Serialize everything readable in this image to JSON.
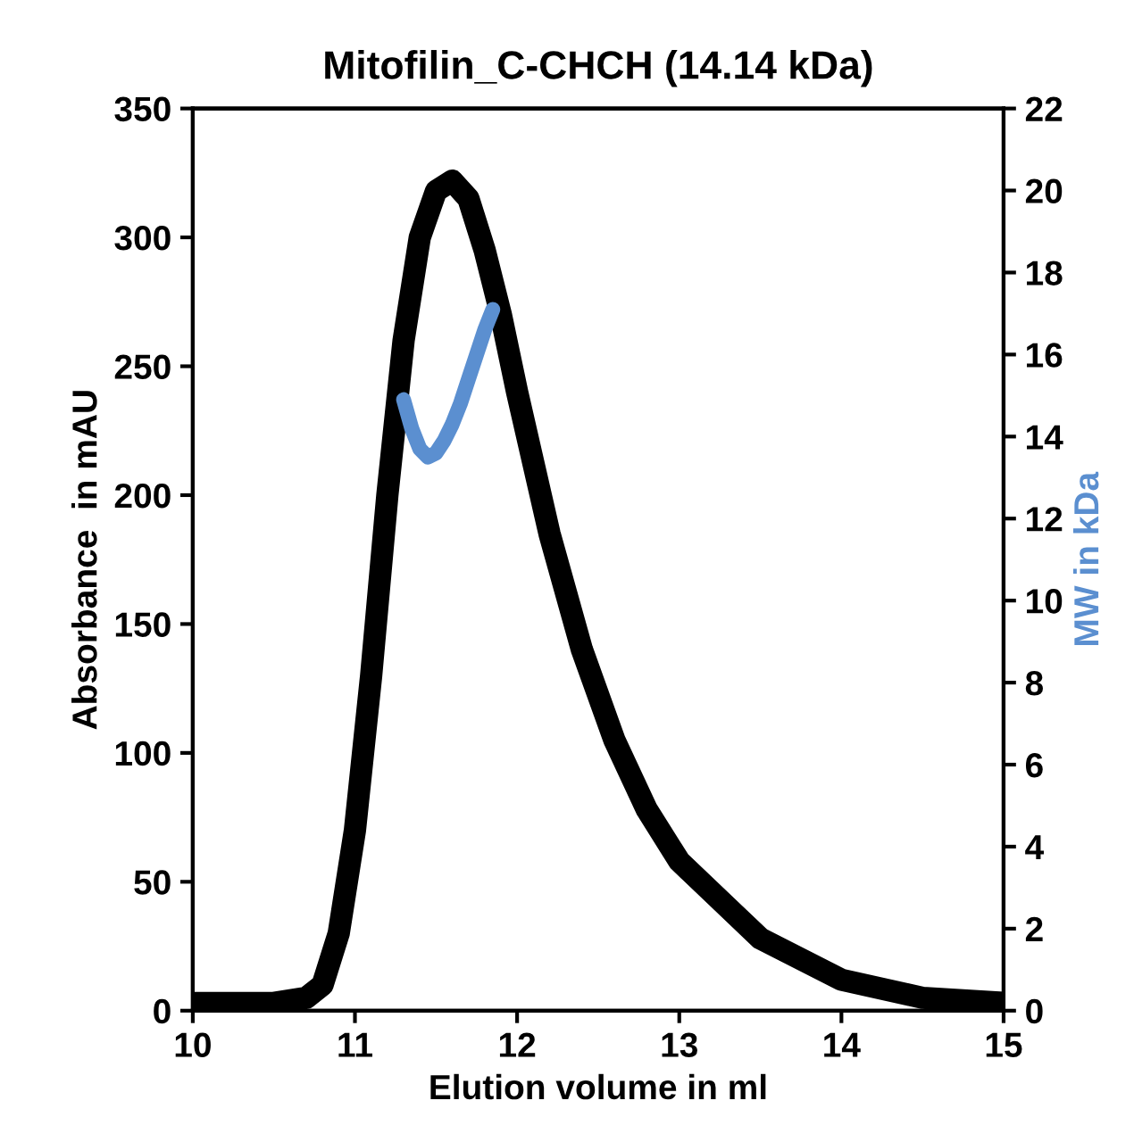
{
  "chart_data": {
    "type": "line",
    "title": "Mitofilin_C-CHCH (14.14 kDa)",
    "xlabel": "Elution volume in ml",
    "ylabel": "Absorbance  in mAU",
    "y2label": "MW in kDa",
    "xlim": [
      10,
      15
    ],
    "xticks": [
      10,
      11,
      12,
      13,
      14,
      15
    ],
    "ylim": [
      0,
      350
    ],
    "yticks": [
      0,
      50,
      100,
      150,
      200,
      250,
      300,
      350
    ],
    "y2lim": [
      0,
      22
    ],
    "y2ticks": [
      0,
      2,
      4,
      6,
      8,
      10,
      12,
      14,
      16,
      18,
      20,
      22
    ],
    "grid": false,
    "legend": false,
    "series": [
      {
        "color": "#000000",
        "x": [
          10,
          10.5,
          10.7,
          10.8,
          10.9,
          11.0,
          11.1,
          11.2,
          11.3,
          11.4,
          11.5,
          11.6,
          11.7,
          11.8,
          11.9,
          12.0,
          12.2,
          12.4,
          12.6,
          12.8,
          13.0,
          13.5,
          14.0,
          14.5,
          15
        ],
        "values": [
          3,
          3,
          5,
          10,
          30,
          70,
          130,
          200,
          260,
          300,
          318,
          322,
          315,
          295,
          270,
          240,
          185,
          140,
          105,
          78,
          58,
          28,
          12,
          5,
          3
        ]
      },
      {
        "color": "#5b8fd0",
        "axis": "y2",
        "x": [
          11.3,
          11.35,
          11.4,
          11.45,
          11.5,
          11.55,
          11.6,
          11.65,
          11.7,
          11.75,
          11.8,
          11.85
        ],
        "values": [
          14.9,
          14.2,
          13.7,
          13.5,
          13.6,
          13.9,
          14.3,
          14.8,
          15.4,
          16.0,
          16.6,
          17.1
        ]
      }
    ]
  }
}
